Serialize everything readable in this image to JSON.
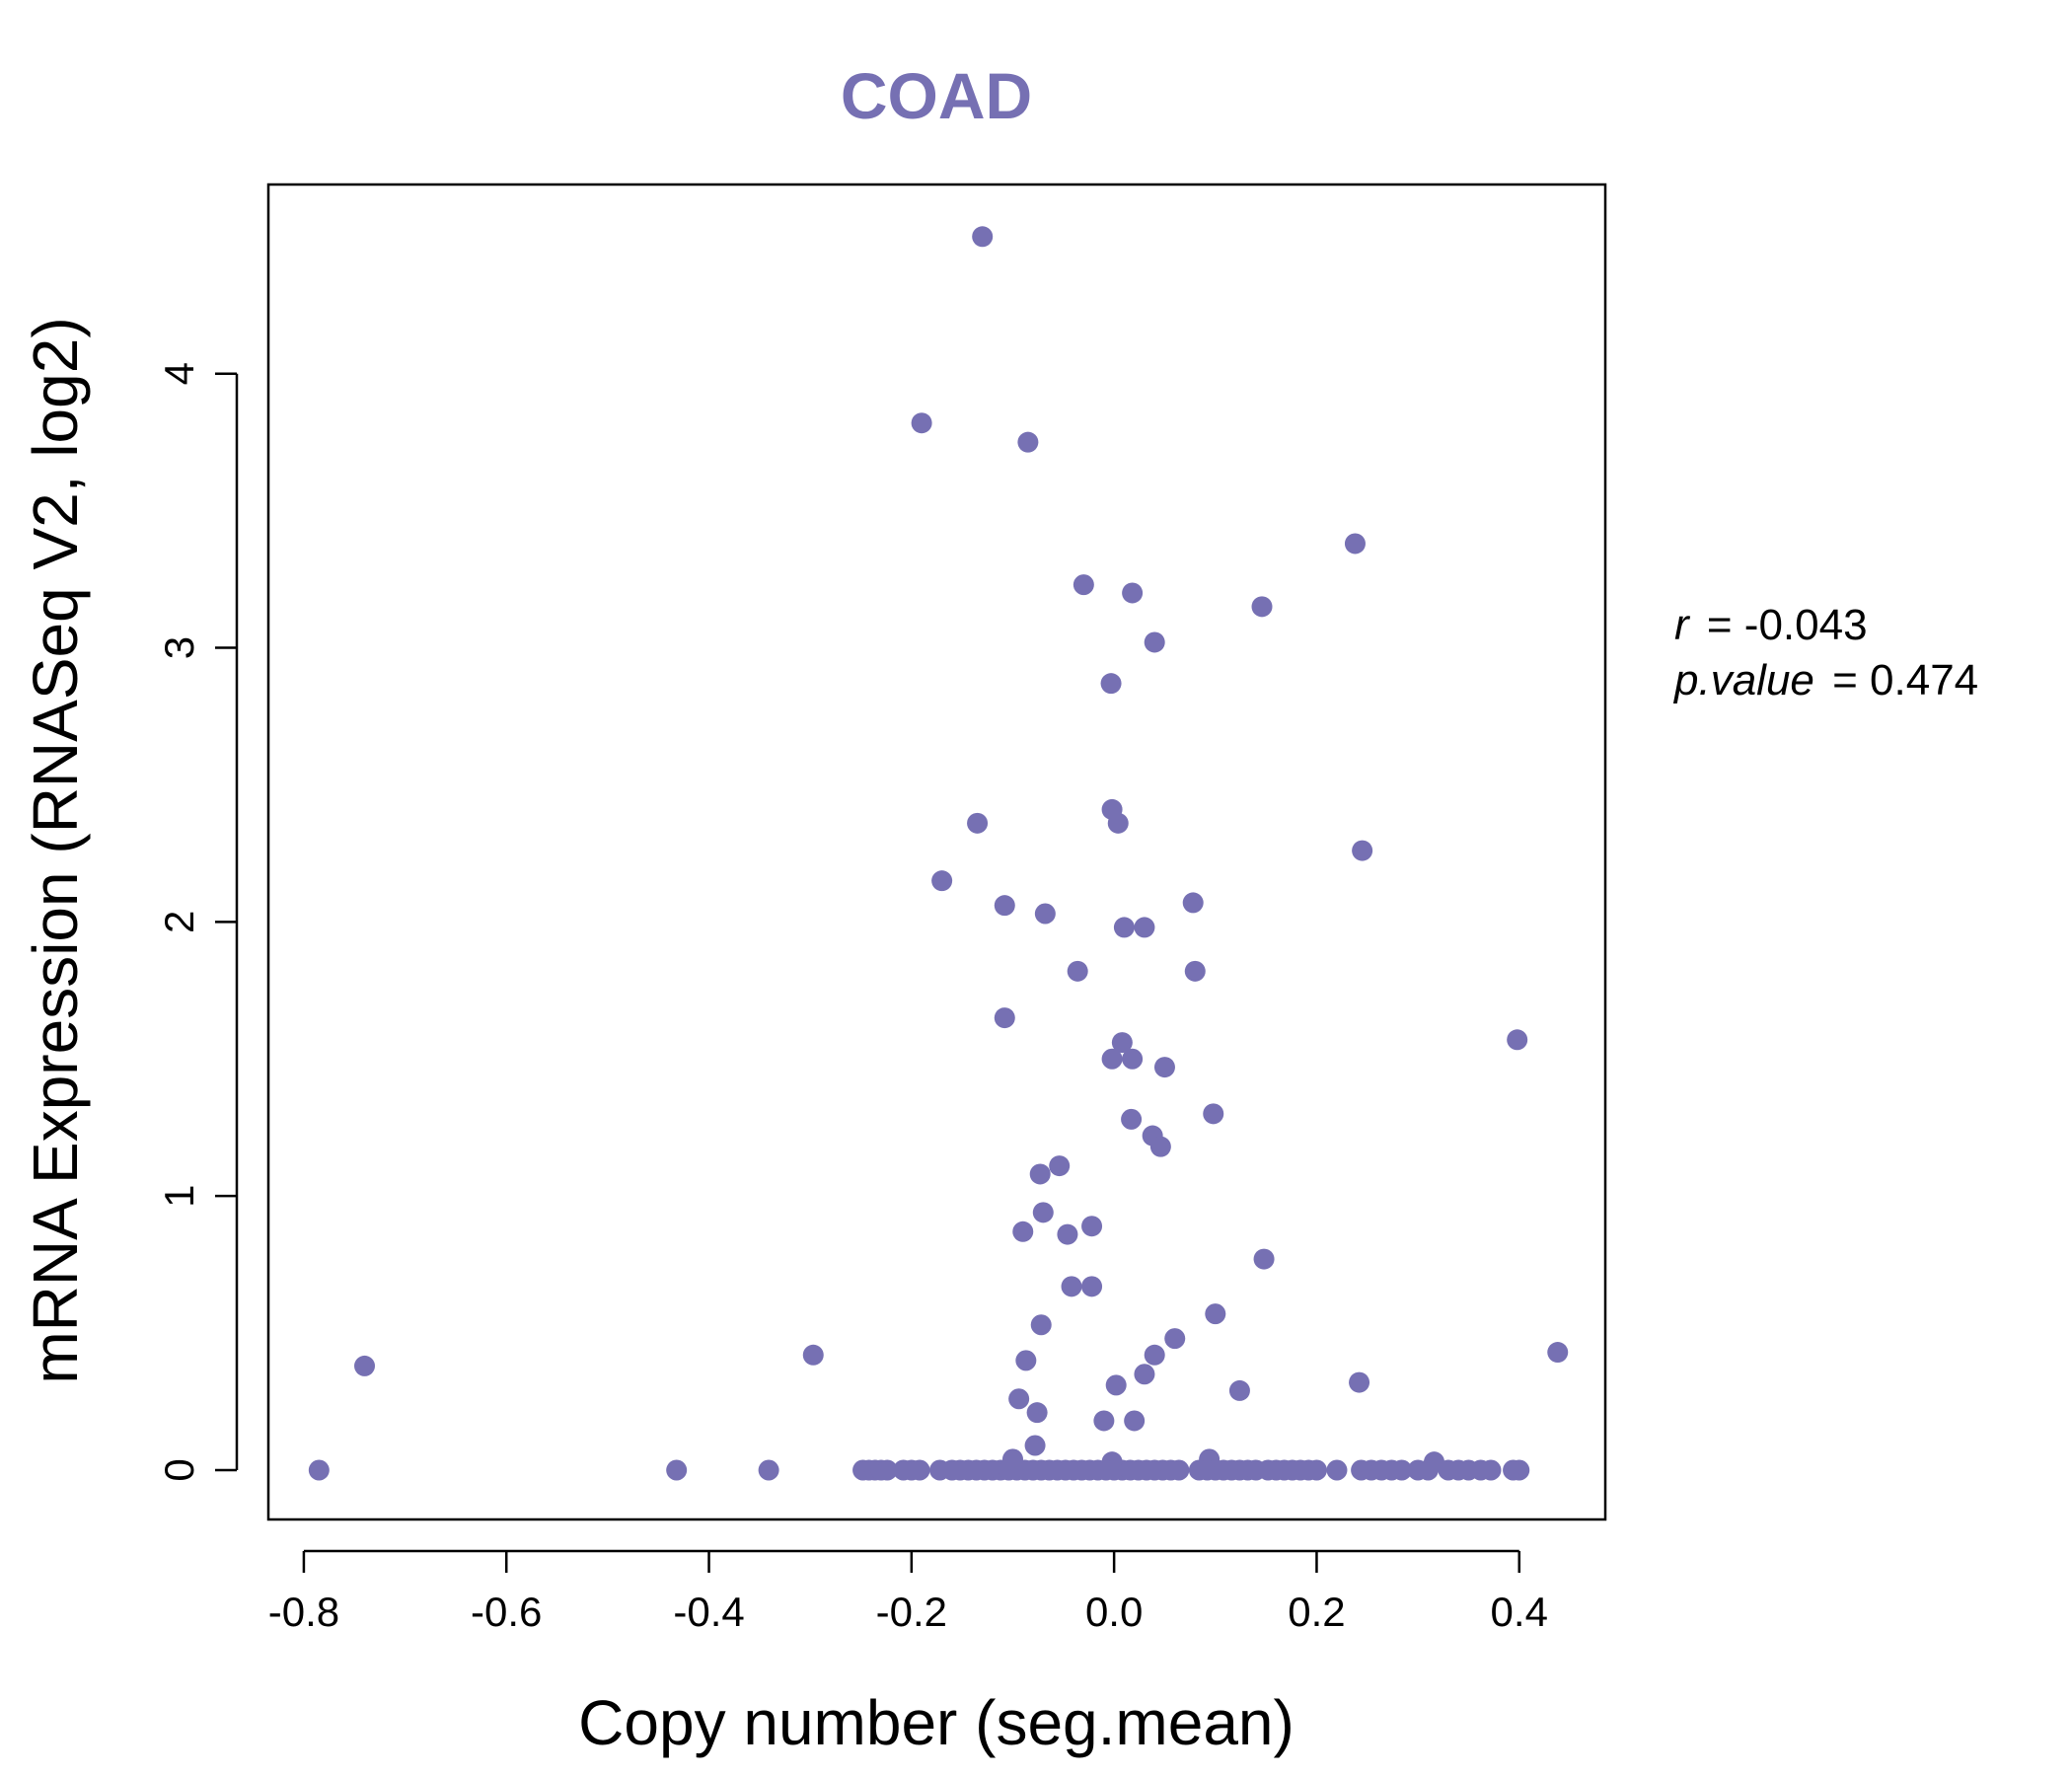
{
  "colors": {
    "accent": "#7670B3",
    "axis": "#000000",
    "background": "#ffffff"
  },
  "chart_data": {
    "type": "scatter",
    "title": "COAD",
    "xlabel": "Copy number (seg.mean)",
    "ylabel": "mRNA Expression (RNASeq V2, log2)",
    "xlim": [
      -0.835,
      0.485
    ],
    "ylim": [
      -0.18,
      4.69
    ],
    "x_ticks": [
      -0.8,
      -0.6,
      -0.4,
      -0.2,
      0.0,
      0.2,
      0.4
    ],
    "x_tick_labels": [
      "-0.8",
      "-0.6",
      "-0.4",
      "-0.2",
      "0.0",
      "0.2",
      "0.4"
    ],
    "y_ticks": [
      0,
      1,
      2,
      3,
      4
    ],
    "y_tick_labels": [
      "0",
      "1",
      "2",
      "3",
      "4"
    ],
    "grid": false,
    "stats": {
      "r_label": "r",
      "r_value": "= -0.043",
      "p_label": "p.value",
      "p_value": "= 0.474"
    },
    "points": [
      {
        "x": -0.13,
        "y": 4.5
      },
      {
        "x": -0.19,
        "y": 3.82
      },
      {
        "x": -0.085,
        "y": 3.75
      },
      {
        "x": 0.238,
        "y": 3.38
      },
      {
        "x": -0.03,
        "y": 3.23
      },
      {
        "x": 0.018,
        "y": 3.2
      },
      {
        "x": 0.146,
        "y": 3.15
      },
      {
        "x": 0.04,
        "y": 3.02
      },
      {
        "x": -0.003,
        "y": 2.87
      },
      {
        "x": -0.002,
        "y": 2.41
      },
      {
        "x": 0.004,
        "y": 2.36
      },
      {
        "x": -0.135,
        "y": 2.36
      },
      {
        "x": 0.245,
        "y": 2.26
      },
      {
        "x": -0.17,
        "y": 2.15
      },
      {
        "x": 0.078,
        "y": 2.07
      },
      {
        "x": -0.108,
        "y": 2.06
      },
      {
        "x": -0.068,
        "y": 2.03
      },
      {
        "x": 0.01,
        "y": 1.98
      },
      {
        "x": 0.03,
        "y": 1.98
      },
      {
        "x": -0.036,
        "y": 1.82
      },
      {
        "x": 0.08,
        "y": 1.82
      },
      {
        "x": -0.108,
        "y": 1.65
      },
      {
        "x": 0.398,
        "y": 1.57
      },
      {
        "x": 0.008,
        "y": 1.56
      },
      {
        "x": -0.002,
        "y": 1.5
      },
      {
        "x": 0.018,
        "y": 1.5
      },
      {
        "x": 0.05,
        "y": 1.47
      },
      {
        "x": 0.098,
        "y": 1.3
      },
      {
        "x": 0.017,
        "y": 1.28
      },
      {
        "x": 0.038,
        "y": 1.22
      },
      {
        "x": 0.046,
        "y": 1.18
      },
      {
        "x": -0.054,
        "y": 1.11
      },
      {
        "x": -0.073,
        "y": 1.08
      },
      {
        "x": -0.07,
        "y": 0.94
      },
      {
        "x": -0.022,
        "y": 0.89
      },
      {
        "x": -0.09,
        "y": 0.87
      },
      {
        "x": -0.046,
        "y": 0.86
      },
      {
        "x": 0.148,
        "y": 0.77
      },
      {
        "x": -0.042,
        "y": 0.67
      },
      {
        "x": -0.022,
        "y": 0.67
      },
      {
        "x": 0.1,
        "y": 0.57
      },
      {
        "x": -0.072,
        "y": 0.53
      },
      {
        "x": 0.06,
        "y": 0.48
      },
      {
        "x": 0.438,
        "y": 0.43
      },
      {
        "x": 0.04,
        "y": 0.42
      },
      {
        "x": -0.297,
        "y": 0.42
      },
      {
        "x": -0.087,
        "y": 0.4
      },
      {
        "x": -0.74,
        "y": 0.38
      },
      {
        "x": 0.03,
        "y": 0.35
      },
      {
        "x": 0.002,
        "y": 0.31
      },
      {
        "x": 0.242,
        "y": 0.32
      },
      {
        "x": 0.124,
        "y": 0.29
      },
      {
        "x": -0.094,
        "y": 0.26
      },
      {
        "x": -0.076,
        "y": 0.21
      },
      {
        "x": -0.01,
        "y": 0.18
      },
      {
        "x": 0.02,
        "y": 0.18
      },
      {
        "x": -0.078,
        "y": 0.09
      },
      {
        "x": -0.1,
        "y": 0.04
      },
      {
        "x": 0.094,
        "y": 0.04
      },
      {
        "x": 0.316,
        "y": 0.03
      },
      {
        "x": -0.002,
        "y": 0.03
      },
      {
        "x": -0.785,
        "y": 0
      },
      {
        "x": -0.432,
        "y": 0
      },
      {
        "x": -0.341,
        "y": 0
      },
      {
        "x": -0.248,
        "y": 0
      },
      {
        "x": -0.242,
        "y": 0
      },
      {
        "x": -0.236,
        "y": 0
      },
      {
        "x": -0.23,
        "y": 0
      },
      {
        "x": -0.224,
        "y": 0
      },
      {
        "x": -0.208,
        "y": 0
      },
      {
        "x": -0.2,
        "y": 0
      },
      {
        "x": -0.192,
        "y": 0
      },
      {
        "x": -0.172,
        "y": 0
      },
      {
        "x": -0.16,
        "y": 0
      },
      {
        "x": -0.152,
        "y": 0
      },
      {
        "x": -0.144,
        "y": 0
      },
      {
        "x": -0.136,
        "y": 0
      },
      {
        "x": -0.128,
        "y": 0
      },
      {
        "x": -0.12,
        "y": 0
      },
      {
        "x": -0.112,
        "y": 0
      },
      {
        "x": -0.104,
        "y": 0
      },
      {
        "x": -0.096,
        "y": 0
      },
      {
        "x": -0.088,
        "y": 0
      },
      {
        "x": -0.08,
        "y": 0
      },
      {
        "x": -0.072,
        "y": 0
      },
      {
        "x": -0.064,
        "y": 0
      },
      {
        "x": -0.056,
        "y": 0
      },
      {
        "x": -0.048,
        "y": 0
      },
      {
        "x": -0.04,
        "y": 0
      },
      {
        "x": -0.032,
        "y": 0
      },
      {
        "x": -0.024,
        "y": 0
      },
      {
        "x": -0.016,
        "y": 0
      },
      {
        "x": -0.008,
        "y": 0
      },
      {
        "x": 0.0,
        "y": 0
      },
      {
        "x": 0.008,
        "y": 0
      },
      {
        "x": 0.016,
        "y": 0
      },
      {
        "x": 0.024,
        "y": 0
      },
      {
        "x": 0.032,
        "y": 0
      },
      {
        "x": 0.04,
        "y": 0
      },
      {
        "x": 0.048,
        "y": 0
      },
      {
        "x": 0.056,
        "y": 0
      },
      {
        "x": 0.064,
        "y": 0
      },
      {
        "x": 0.084,
        "y": 0
      },
      {
        "x": 0.092,
        "y": 0
      },
      {
        "x": 0.1,
        "y": 0
      },
      {
        "x": 0.108,
        "y": 0
      },
      {
        "x": 0.116,
        "y": 0
      },
      {
        "x": 0.124,
        "y": 0
      },
      {
        "x": 0.132,
        "y": 0
      },
      {
        "x": 0.14,
        "y": 0
      },
      {
        "x": 0.152,
        "y": 0
      },
      {
        "x": 0.16,
        "y": 0
      },
      {
        "x": 0.168,
        "y": 0
      },
      {
        "x": 0.176,
        "y": 0
      },
      {
        "x": 0.184,
        "y": 0
      },
      {
        "x": 0.192,
        "y": 0
      },
      {
        "x": 0.2,
        "y": 0
      },
      {
        "x": 0.22,
        "y": 0
      },
      {
        "x": 0.244,
        "y": 0
      },
      {
        "x": 0.254,
        "y": 0
      },
      {
        "x": 0.264,
        "y": 0
      },
      {
        "x": 0.274,
        "y": 0
      },
      {
        "x": 0.284,
        "y": 0
      },
      {
        "x": 0.3,
        "y": 0
      },
      {
        "x": 0.31,
        "y": 0
      },
      {
        "x": 0.33,
        "y": 0
      },
      {
        "x": 0.34,
        "y": 0
      },
      {
        "x": 0.35,
        "y": 0
      },
      {
        "x": 0.362,
        "y": 0
      },
      {
        "x": 0.372,
        "y": 0
      },
      {
        "x": 0.394,
        "y": 0
      },
      {
        "x": 0.4,
        "y": 0
      }
    ]
  }
}
